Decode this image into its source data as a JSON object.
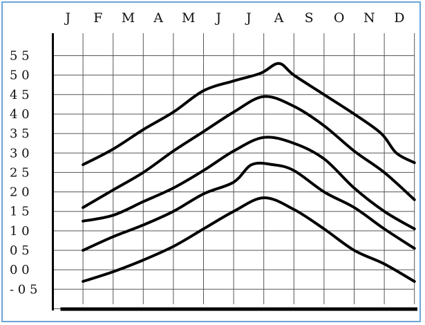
{
  "chart_data": {
    "type": "line",
    "title": "",
    "xlabel": "",
    "ylabel": "",
    "categories": [
      "J",
      "F",
      "M",
      "A",
      "M",
      "J",
      "J",
      "A",
      "S",
      "O",
      "N",
      "D"
    ],
    "y_ticks": [
      "5 5",
      "5 0",
      "4 5",
      "4 0",
      "3 5",
      "3 0",
      "2 5",
      "2 0",
      "1 5",
      "1 0",
      "0 5",
      "0 0",
      "- 0 5"
    ],
    "ylim": [
      -1.0,
      6.0
    ],
    "grid": true,
    "series": [
      {
        "points": [
          [
            1.0,
            2.7
          ],
          [
            2.0,
            3.1
          ],
          [
            3.0,
            3.6
          ],
          [
            4.0,
            4.05
          ],
          [
            5.0,
            4.6
          ],
          [
            6.0,
            4.85
          ],
          [
            6.9,
            5.05
          ],
          [
            7.5,
            5.3
          ],
          [
            8.0,
            5.0
          ],
          [
            9.0,
            4.5
          ],
          [
            10.0,
            4.0
          ],
          [
            10.9,
            3.5
          ],
          [
            11.4,
            3.0
          ],
          [
            12.0,
            2.75
          ]
        ]
      },
      {
        "points": [
          [
            1.0,
            1.6
          ],
          [
            2.0,
            2.05
          ],
          [
            3.0,
            2.5
          ],
          [
            4.0,
            3.05
          ],
          [
            5.0,
            3.55
          ],
          [
            6.0,
            4.05
          ],
          [
            7.0,
            4.45
          ],
          [
            8.0,
            4.2
          ],
          [
            9.0,
            3.7
          ],
          [
            10.0,
            3.05
          ],
          [
            11.0,
            2.5
          ],
          [
            12.0,
            1.8
          ]
        ]
      },
      {
        "points": [
          [
            1.0,
            1.25
          ],
          [
            2.0,
            1.4
          ],
          [
            3.0,
            1.75
          ],
          [
            4.0,
            2.1
          ],
          [
            5.0,
            2.55
          ],
          [
            6.0,
            3.05
          ],
          [
            7.0,
            3.4
          ],
          [
            8.0,
            3.25
          ],
          [
            9.0,
            2.85
          ],
          [
            10.0,
            2.1
          ],
          [
            11.0,
            1.5
          ],
          [
            12.0,
            1.05
          ]
        ]
      },
      {
        "points": [
          [
            1.0,
            0.5
          ],
          [
            2.0,
            0.85
          ],
          [
            3.0,
            1.15
          ],
          [
            4.0,
            1.5
          ],
          [
            5.0,
            1.95
          ],
          [
            6.0,
            2.25
          ],
          [
            6.6,
            2.7
          ],
          [
            7.3,
            2.7
          ],
          [
            8.0,
            2.55
          ],
          [
            9.0,
            2.0
          ],
          [
            10.0,
            1.6
          ],
          [
            11.0,
            1.05
          ],
          [
            12.0,
            0.55
          ]
        ]
      },
      {
        "points": [
          [
            1.0,
            -0.3
          ],
          [
            2.0,
            -0.05
          ],
          [
            3.0,
            0.25
          ],
          [
            4.0,
            0.6
          ],
          [
            5.0,
            1.05
          ],
          [
            6.0,
            1.5
          ],
          [
            7.0,
            1.85
          ],
          [
            8.0,
            1.55
          ],
          [
            9.0,
            1.05
          ],
          [
            10.0,
            0.5
          ],
          [
            11.0,
            0.15
          ],
          [
            12.0,
            -0.3
          ]
        ]
      }
    ]
  }
}
